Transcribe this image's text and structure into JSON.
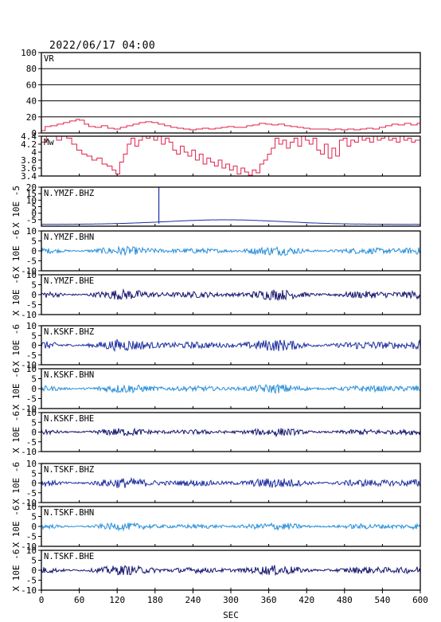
{
  "chart_data": {
    "type": "line",
    "title": "2022/06/17 04:00",
    "xlabel": "SEC",
    "xlim": [
      0,
      600
    ],
    "x_ticks": [
      "0",
      "60",
      "120",
      "180",
      "240",
      "300",
      "360",
      "420",
      "480",
      "540",
      "600"
    ],
    "panels": [
      {
        "label": "VR",
        "ylim": [
          0,
          100
        ],
        "y_ticks": [
          "0",
          "20",
          "40",
          "60",
          "80",
          "100"
        ],
        "ylabel": "",
        "color": "#e0204a",
        "grid": true,
        "style": "step",
        "series": [
          [
            0,
            3
          ],
          [
            6,
            8
          ],
          [
            15,
            9
          ],
          [
            25,
            11
          ],
          [
            35,
            13
          ],
          [
            45,
            15
          ],
          [
            55,
            17
          ],
          [
            60,
            16
          ],
          [
            68,
            11
          ],
          [
            75,
            8
          ],
          [
            85,
            7
          ],
          [
            95,
            9
          ],
          [
            105,
            6
          ],
          [
            115,
            5
          ],
          [
            125,
            7
          ],
          [
            135,
            9
          ],
          [
            145,
            11
          ],
          [
            155,
            13
          ],
          [
            165,
            14
          ],
          [
            175,
            13
          ],
          [
            185,
            11
          ],
          [
            195,
            9
          ],
          [
            205,
            7
          ],
          [
            215,
            6
          ],
          [
            225,
            5
          ],
          [
            235,
            4
          ],
          [
            245,
            5
          ],
          [
            255,
            6
          ],
          [
            265,
            5
          ],
          [
            275,
            6
          ],
          [
            285,
            7
          ],
          [
            295,
            8
          ],
          [
            305,
            7
          ],
          [
            315,
            7
          ],
          [
            325,
            9
          ],
          [
            335,
            10
          ],
          [
            345,
            12
          ],
          [
            355,
            11
          ],
          [
            365,
            10
          ],
          [
            375,
            11
          ],
          [
            385,
            9
          ],
          [
            395,
            8
          ],
          [
            405,
            7
          ],
          [
            415,
            6
          ],
          [
            425,
            5
          ],
          [
            435,
            5
          ],
          [
            445,
            5
          ],
          [
            455,
            4
          ],
          [
            465,
            5
          ],
          [
            475,
            4
          ],
          [
            485,
            5
          ],
          [
            495,
            4
          ],
          [
            505,
            5
          ],
          [
            515,
            6
          ],
          [
            525,
            5
          ],
          [
            535,
            7
          ],
          [
            545,
            9
          ],
          [
            555,
            11
          ],
          [
            565,
            10
          ],
          [
            575,
            12
          ],
          [
            585,
            10
          ],
          [
            595,
            12
          ],
          [
            600,
            11
          ]
        ]
      },
      {
        "label": "Mw",
        "ylim": [
          3.4,
          4.4
        ],
        "y_ticks": [
          "3.4",
          "3.6",
          "3.8",
          "4",
          "4.2",
          "4.4"
        ],
        "ylabel": "",
        "color": "#e0204a",
        "grid": false,
        "style": "step",
        "series": [
          [
            0,
            4.25
          ],
          [
            8,
            4.4
          ],
          [
            16,
            4.45
          ],
          [
            24,
            4.3
          ],
          [
            32,
            4.45
          ],
          [
            40,
            4.35
          ],
          [
            48,
            4.2
          ],
          [
            56,
            4.05
          ],
          [
            64,
            3.95
          ],
          [
            72,
            3.9
          ],
          [
            80,
            3.8
          ],
          [
            88,
            3.85
          ],
          [
            96,
            3.7
          ],
          [
            104,
            3.65
          ],
          [
            112,
            3.55
          ],
          [
            118,
            3.45
          ],
          [
            124,
            3.75
          ],
          [
            130,
            3.95
          ],
          [
            136,
            4.2
          ],
          [
            142,
            4.35
          ],
          [
            148,
            4.15
          ],
          [
            154,
            4.3
          ],
          [
            160,
            4.45
          ],
          [
            166,
            4.35
          ],
          [
            172,
            4.45
          ],
          [
            178,
            4.3
          ],
          [
            184,
            4.4
          ],
          [
            190,
            4.2
          ],
          [
            196,
            4.35
          ],
          [
            202,
            4.25
          ],
          [
            208,
            4.05
          ],
          [
            214,
            3.95
          ],
          [
            220,
            4.15
          ],
          [
            226,
            4.0
          ],
          [
            232,
            3.9
          ],
          [
            238,
            4.05
          ],
          [
            244,
            3.8
          ],
          [
            250,
            3.95
          ],
          [
            256,
            3.7
          ],
          [
            262,
            3.85
          ],
          [
            268,
            3.75
          ],
          [
            274,
            3.65
          ],
          [
            280,
            3.8
          ],
          [
            286,
            3.6
          ],
          [
            292,
            3.7
          ],
          [
            298,
            3.55
          ],
          [
            304,
            3.65
          ],
          [
            310,
            3.45
          ],
          [
            316,
            3.6
          ],
          [
            322,
            3.5
          ],
          [
            328,
            3.42
          ],
          [
            334,
            3.55
          ],
          [
            340,
            3.48
          ],
          [
            346,
            3.7
          ],
          [
            352,
            3.8
          ],
          [
            358,
            3.95
          ],
          [
            364,
            4.1
          ],
          [
            370,
            4.35
          ],
          [
            376,
            4.2
          ],
          [
            382,
            4.3
          ],
          [
            388,
            4.1
          ],
          [
            394,
            4.25
          ],
          [
            400,
            4.35
          ],
          [
            406,
            4.15
          ],
          [
            412,
            4.4
          ],
          [
            418,
            4.3
          ],
          [
            424,
            4.2
          ],
          [
            430,
            4.35
          ],
          [
            436,
            4.05
          ],
          [
            442,
            3.95
          ],
          [
            448,
            4.2
          ],
          [
            454,
            3.85
          ],
          [
            460,
            4.1
          ],
          [
            466,
            3.9
          ],
          [
            472,
            4.3
          ],
          [
            478,
            4.35
          ],
          [
            484,
            4.15
          ],
          [
            490,
            4.3
          ],
          [
            496,
            4.25
          ],
          [
            502,
            4.4
          ],
          [
            508,
            4.3
          ],
          [
            514,
            4.35
          ],
          [
            520,
            4.25
          ],
          [
            526,
            4.4
          ],
          [
            532,
            4.3
          ],
          [
            538,
            4.35
          ],
          [
            544,
            4.4
          ],
          [
            550,
            4.3
          ],
          [
            556,
            4.35
          ],
          [
            562,
            4.25
          ],
          [
            568,
            4.4
          ],
          [
            574,
            4.3
          ],
          [
            580,
            4.35
          ],
          [
            586,
            4.25
          ],
          [
            592,
            4.3
          ],
          [
            600,
            4.35
          ]
        ]
      },
      {
        "label": "N.YMZF.BHZ",
        "ylim": [
          -10,
          20
        ],
        "y_ticks": [
          "-5",
          "0",
          "5",
          "10",
          "15",
          "20"
        ],
        "ylabel": "X 10E -5",
        "color": "#1d2fa0",
        "grid": false,
        "style": "drift",
        "amplitude": 0.1,
        "spike_x": 186
      },
      {
        "label": "N.YMZF.BHN",
        "ylim": [
          -10,
          10
        ],
        "y_ticks": [
          "10",
          "5",
          "0",
          "-5",
          "-10"
        ],
        "ylabel": "X 10E -6",
        "color": "#2a8fd8",
        "grid": false,
        "style": "noise",
        "amplitude": 0.6
      },
      {
        "label": "N.YMZF.BHE",
        "ylim": [
          -10,
          10
        ],
        "y_ticks": [
          "10",
          "5",
          "0",
          "-5",
          "-10"
        ],
        "ylabel": "X 10E -6",
        "color": "#15156e",
        "grid": false,
        "style": "noise",
        "amplitude": 0.7
      },
      {
        "label": "N.KSKF.BHZ",
        "ylim": [
          -10,
          10
        ],
        "y_ticks": [
          "10",
          "5",
          "0",
          "-5",
          "-10"
        ],
        "ylabel": "X 10E -6",
        "color": "#1d2fa0",
        "grid": false,
        "style": "noise",
        "amplitude": 0.8
      },
      {
        "label": "N.KSKF.BHN",
        "ylim": [
          -10,
          10
        ],
        "y_ticks": [
          "10",
          "5",
          "0",
          "-5",
          "-10"
        ],
        "ylabel": "X 10E -6",
        "color": "#2a8fd8",
        "grid": false,
        "style": "noise",
        "amplitude": 0.6
      },
      {
        "label": "N.KSKF.BHE",
        "ylim": [
          -10,
          10
        ],
        "y_ticks": [
          "10",
          "5",
          "0",
          "-5",
          "-10"
        ],
        "ylabel": "X 10E -6",
        "color": "#15156e",
        "grid": false,
        "style": "noise",
        "amplitude": 0.55
      },
      {
        "label": "N.TSKF.BHZ",
        "ylim": [
          -10,
          10
        ],
        "y_ticks": [
          "10",
          "5",
          "0",
          "-5",
          "-10"
        ],
        "ylabel": "X 10E -6",
        "color": "#1d2fa0",
        "grid": false,
        "style": "noise",
        "amplitude": 0.7
      },
      {
        "label": "N.TSKF.BHN",
        "ylim": [
          -10,
          10
        ],
        "y_ticks": [
          "10",
          "5",
          "0",
          "-5",
          "-10"
        ],
        "ylabel": "X 10E -6",
        "color": "#2a8fd8",
        "grid": false,
        "style": "noise",
        "amplitude": 0.5
      },
      {
        "label": "N.TSKF.BHE",
        "ylim": [
          -10,
          10
        ],
        "y_ticks": [
          "10",
          "5",
          "0",
          "-5",
          "-10"
        ],
        "ylabel": "X 10E -6",
        "color": "#15156e",
        "grid": false,
        "style": "noise",
        "amplitude": 0.65
      }
    ]
  }
}
